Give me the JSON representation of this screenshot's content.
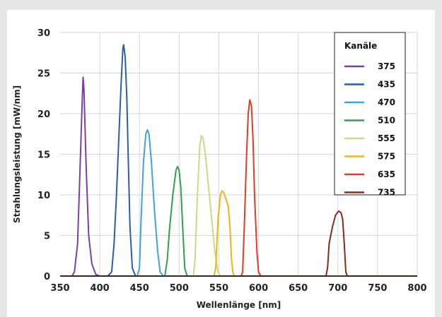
{
  "chart_data": {
    "type": "line",
    "xlabel": "Wellenlänge [nm]",
    "ylabel": "Strahlungsleistung [mW/nm]",
    "xlim": [
      350,
      800
    ],
    "ylim": [
      0,
      30
    ],
    "xticks": [
      350,
      400,
      450,
      500,
      550,
      600,
      650,
      700,
      750,
      800
    ],
    "yticks": [
      0,
      5,
      10,
      15,
      20,
      25,
      30
    ],
    "grid": true,
    "legend": {
      "title": "Kanäle",
      "placement": "top-right"
    },
    "series": [
      {
        "name": "375",
        "color": "#7b3fa8",
        "points": [
          [
            350,
            0
          ],
          [
            365,
            0
          ],
          [
            368,
            0.5
          ],
          [
            372,
            4
          ],
          [
            375,
            13
          ],
          [
            378,
            22
          ],
          [
            379,
            24.5
          ],
          [
            380,
            23
          ],
          [
            383,
            13
          ],
          [
            386,
            5
          ],
          [
            390,
            1.5
          ],
          [
            395,
            0.2
          ],
          [
            400,
            0
          ],
          [
            800,
            0
          ]
        ]
      },
      {
        "name": "435",
        "color": "#2a5ea8",
        "points": [
          [
            350,
            0
          ],
          [
            410,
            0
          ],
          [
            415,
            0.5
          ],
          [
            418,
            4
          ],
          [
            421,
            10
          ],
          [
            424,
            17
          ],
          [
            427,
            24
          ],
          [
            429,
            28
          ],
          [
            430,
            28.5
          ],
          [
            432,
            27
          ],
          [
            434,
            22
          ],
          [
            436,
            14
          ],
          [
            438,
            6
          ],
          [
            441,
            1
          ],
          [
            445,
            0
          ],
          [
            800,
            0
          ]
        ]
      },
      {
        "name": "470",
        "color": "#3fa3d8",
        "points": [
          [
            350,
            0
          ],
          [
            447,
            0
          ],
          [
            450,
            1
          ],
          [
            452,
            7
          ],
          [
            455,
            14
          ],
          [
            458,
            17.5
          ],
          [
            460,
            18
          ],
          [
            462,
            17.5
          ],
          [
            465,
            14
          ],
          [
            469,
            8
          ],
          [
            473,
            3
          ],
          [
            476,
            0.5
          ],
          [
            480,
            0
          ],
          [
            800,
            0
          ]
        ]
      },
      {
        "name": "510",
        "color": "#2ea14a",
        "points": [
          [
            350,
            0
          ],
          [
            482,
            0
          ],
          [
            485,
            2
          ],
          [
            488,
            6
          ],
          [
            492,
            10
          ],
          [
            496,
            13
          ],
          [
            498,
            13.5
          ],
          [
            500,
            13
          ],
          [
            502,
            11
          ],
          [
            505,
            5
          ],
          [
            507,
            1
          ],
          [
            510,
            0
          ],
          [
            800,
            0
          ]
        ]
      },
      {
        "name": "555",
        "color": "#c6dc8c",
        "points": [
          [
            350,
            0
          ],
          [
            518,
            0
          ],
          [
            520,
            2
          ],
          [
            523,
            10
          ],
          [
            526,
            16
          ],
          [
            528,
            17.3
          ],
          [
            530,
            17
          ],
          [
            533,
            15
          ],
          [
            536,
            12
          ],
          [
            539,
            9
          ],
          [
            542,
            6
          ],
          [
            545,
            3
          ],
          [
            549,
            0.5
          ],
          [
            552,
            0
          ],
          [
            800,
            0
          ]
        ]
      },
      {
        "name": "575",
        "color": "#f2b21f",
        "points": [
          [
            350,
            0
          ],
          [
            544,
            0
          ],
          [
            546,
            1
          ],
          [
            549,
            7
          ],
          [
            552,
            10
          ],
          [
            554,
            10.5
          ],
          [
            556,
            10.3
          ],
          [
            559,
            9.5
          ],
          [
            562,
            8.5
          ],
          [
            564,
            6
          ],
          [
            566,
            2
          ],
          [
            568,
            0.3
          ],
          [
            570,
            0
          ],
          [
            800,
            0
          ]
        ]
      },
      {
        "name": "635",
        "color": "#e03a28",
        "points": [
          [
            350,
            0
          ],
          [
            578,
            0
          ],
          [
            580,
            0.5
          ],
          [
            582,
            6
          ],
          [
            585,
            15
          ],
          [
            587,
            20
          ],
          [
            589,
            21.7
          ],
          [
            591,
            21
          ],
          [
            593,
            17
          ],
          [
            595,
            10
          ],
          [
            598,
            3
          ],
          [
            600,
            0.5
          ],
          [
            603,
            0
          ],
          [
            800,
            0
          ]
        ]
      },
      {
        "name": "735",
        "color": "#8b2a1c",
        "points": [
          [
            350,
            0
          ],
          [
            685,
            0
          ],
          [
            687,
            1
          ],
          [
            689,
            4
          ],
          [
            693,
            6
          ],
          [
            697,
            7.5
          ],
          [
            701,
            8
          ],
          [
            704,
            7.8
          ],
          [
            706,
            7
          ],
          [
            708,
            4
          ],
          [
            710,
            0.5
          ],
          [
            712,
            0
          ],
          [
            800,
            0
          ]
        ]
      }
    ]
  }
}
